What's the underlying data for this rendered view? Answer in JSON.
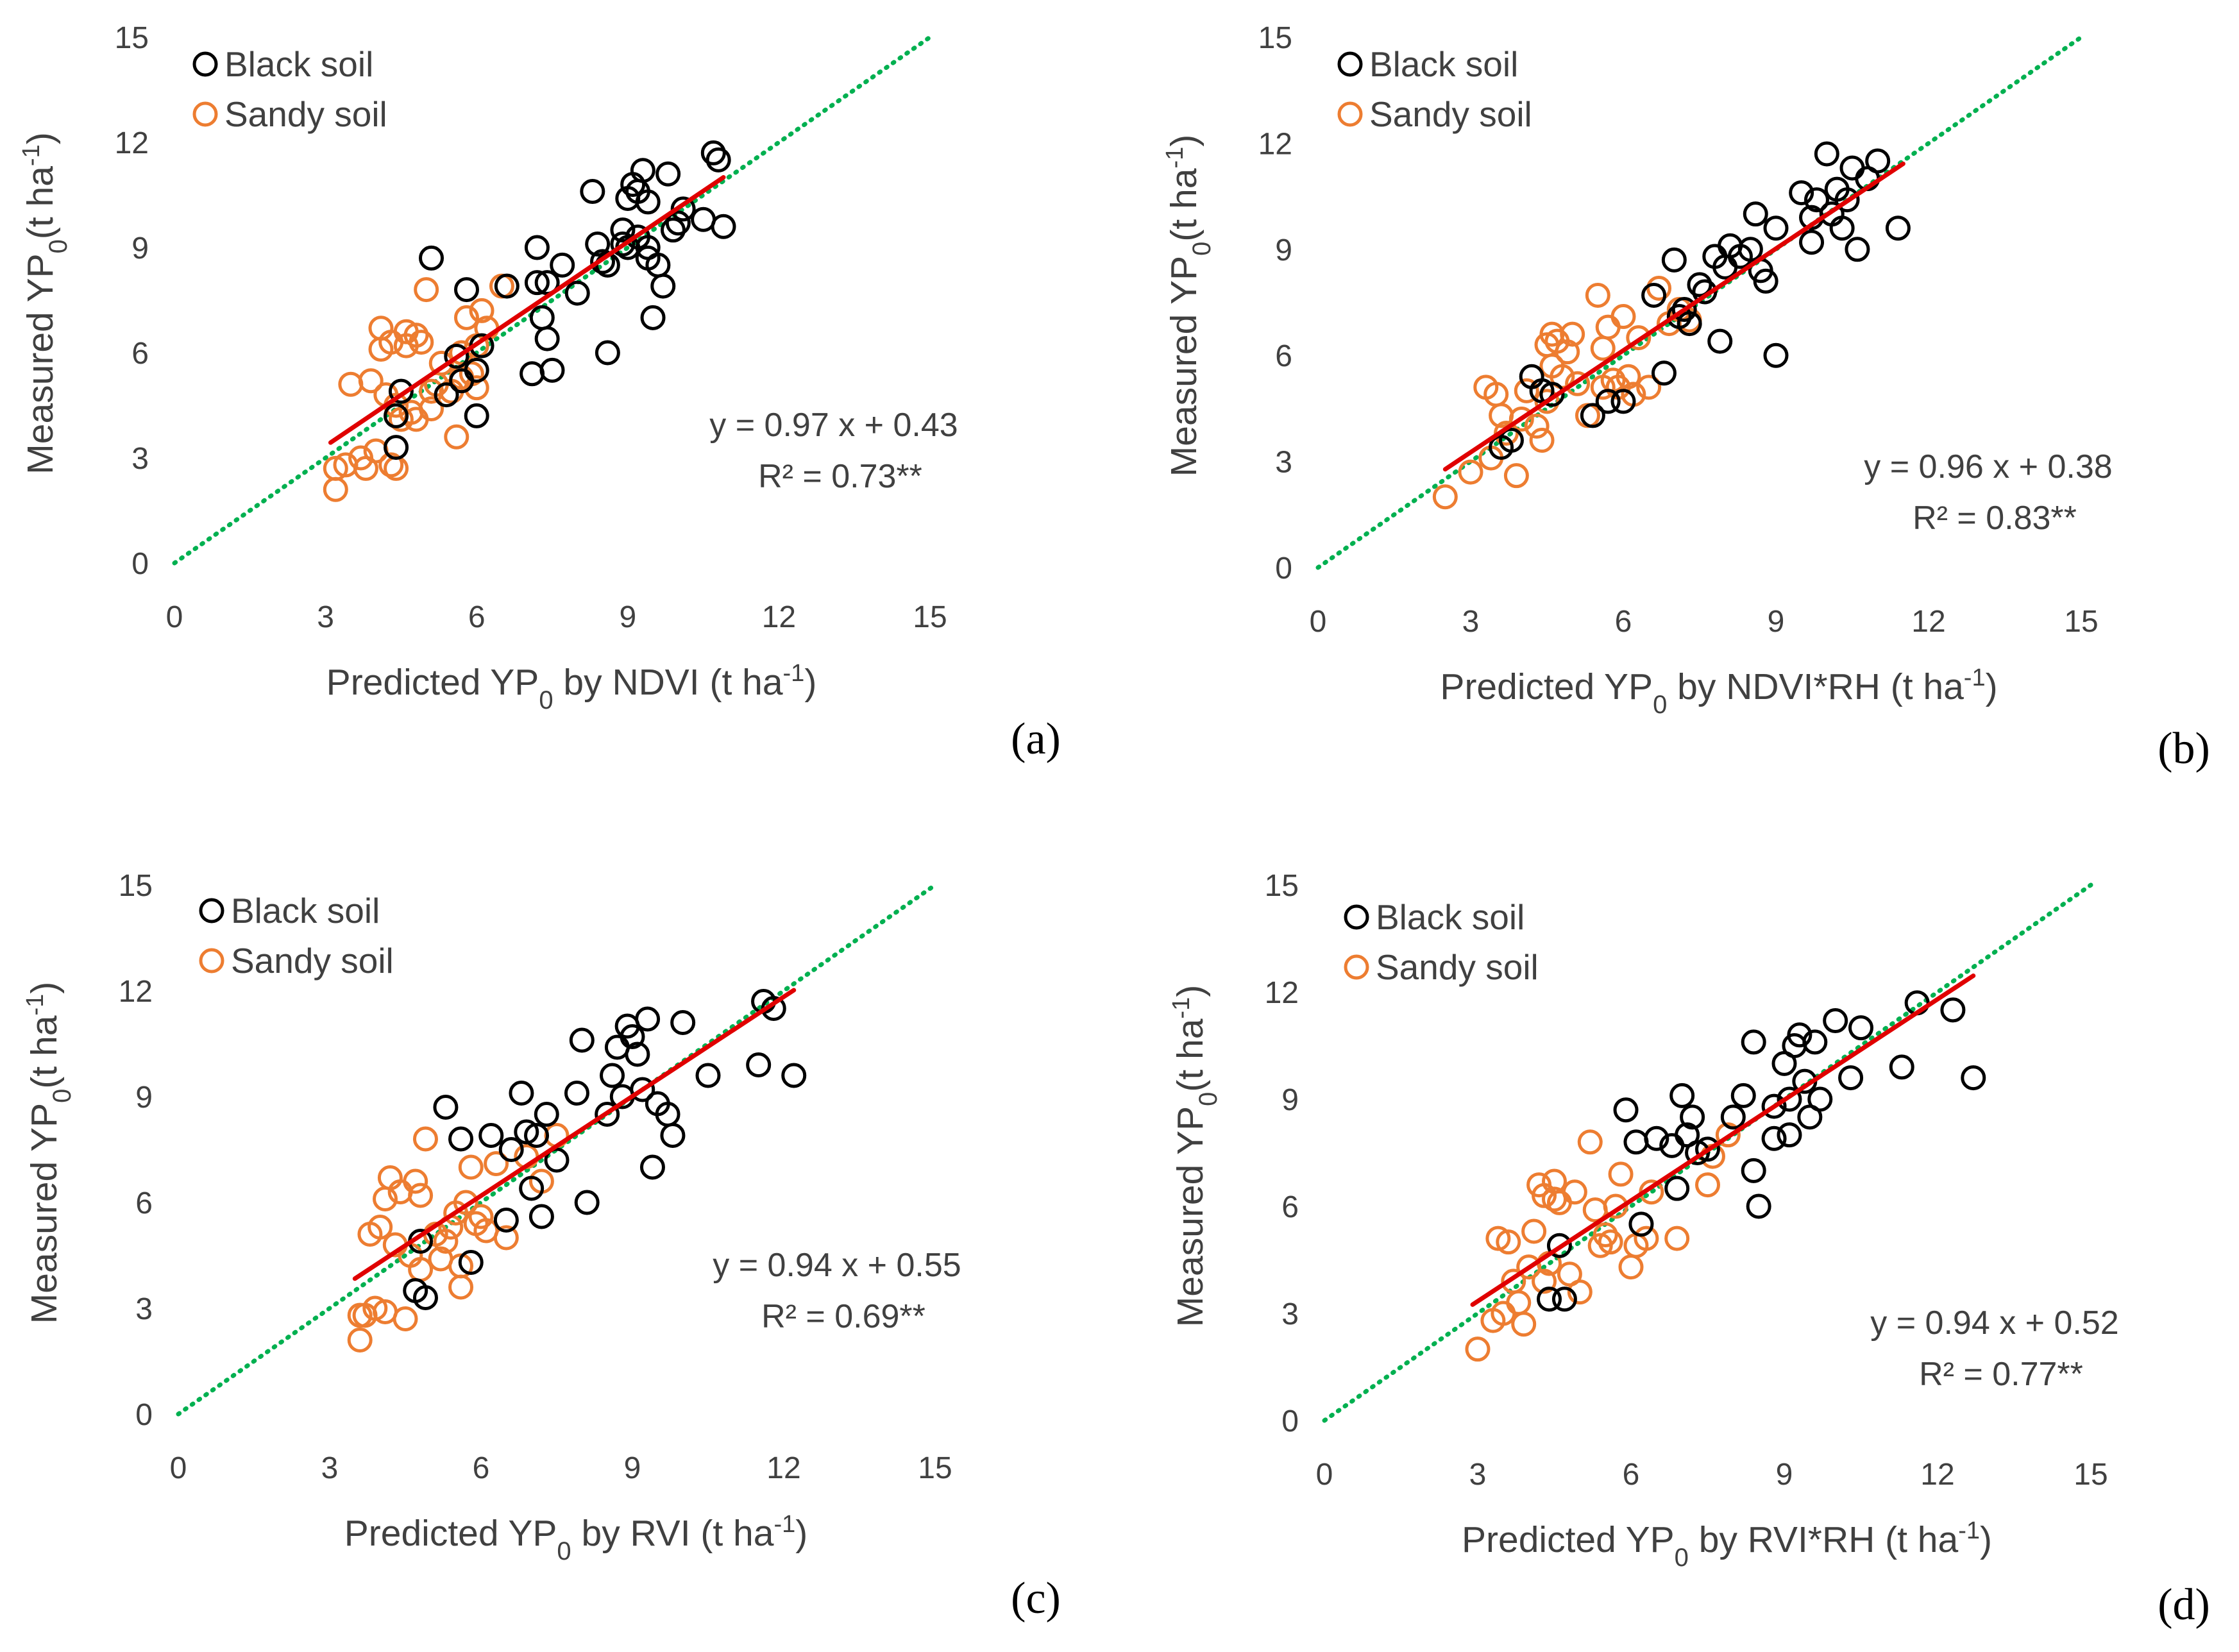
{
  "colors": {
    "black_soil": "#000000",
    "sandy_soil": "#ED7D31",
    "regression": "#E00000",
    "one_to_one": "#00B050",
    "text": "#404040"
  },
  "chart_data": [
    {
      "type": "scatter",
      "panel": "(a)",
      "xlabel": "Predicted YP0 by NDVI (t ha-1)",
      "xlabel_parts": [
        "Predicted YP",
        "0",
        " by NDVI (t ha",
        "-1",
        ")"
      ],
      "ylabel": "Measured YP0 (t ha-1)",
      "ylabel_parts": [
        "Measured YP",
        "0",
        "(t ha",
        "-1",
        ")"
      ],
      "xlim": [
        0,
        15
      ],
      "ylim": [
        0,
        15
      ],
      "xticks": [
        "0",
        "3",
        "6",
        "9",
        "12",
        "15"
      ],
      "yticks": [
        "0",
        "3",
        "6",
        "9",
        "12",
        "15"
      ],
      "legend": [
        "Black soil",
        "Sandy soil"
      ],
      "equation": "y = 0.97 x + 0.43",
      "r2": "R² = 0.73**",
      "fit": {
        "slope": 0.97,
        "intercept": 0.43,
        "x_range": [
          3.1,
          10.9
        ]
      },
      "series": [
        {
          "name": "Black soil",
          "x": [
            5.1,
            5.6,
            5.8,
            4.4,
            4.5,
            4.4,
            5.4,
            5.7,
            6.0,
            7.1,
            7.2,
            7.2,
            7.3,
            7.4,
            7.5,
            7.7,
            8.0,
            8.3,
            8.4,
            8.5,
            8.6,
            8.9,
            8.9,
            9.0,
            9.0,
            9.1,
            9.2,
            9.2,
            9.3,
            9.4,
            9.4,
            9.5,
            9.6,
            9.7,
            9.8,
            9.9,
            10.0,
            10.1,
            10.5,
            10.7,
            10.8,
            10.9,
            8.6,
            9.4,
            7.4,
            6.6,
            6.0,
            6.1
          ],
          "y": [
            8.7,
            5.9,
            7.8,
            4.2,
            4.9,
            3.3,
            4.8,
            5.2,
            4.2,
            5.4,
            9.0,
            8.0,
            7.0,
            6.4,
            5.5,
            8.5,
            7.7,
            10.6,
            9.1,
            8.6,
            6.0,
            9.1,
            9.5,
            10.4,
            9.0,
            10.8,
            9.3,
            10.6,
            11.2,
            9.0,
            8.7,
            7.0,
            8.5,
            7.9,
            11.1,
            9.5,
            9.7,
            10.1,
            9.8,
            11.7,
            11.5,
            9.6,
            8.5,
            10.3,
            8.0,
            7.9,
            5.5,
            6.2
          ]
        },
        {
          "name": "Sandy soil",
          "x": [
            3.2,
            3.4,
            3.5,
            3.7,
            3.8,
            3.9,
            4.0,
            4.1,
            4.1,
            4.2,
            4.3,
            4.3,
            4.4,
            4.4,
            4.5,
            4.6,
            4.6,
            4.7,
            4.8,
            4.8,
            5.0,
            5.1,
            5.2,
            5.3,
            5.5,
            5.6,
            5.7,
            5.8,
            5.9,
            6.0,
            6.1,
            6.2,
            6.5,
            3.2,
            5.7,
            6.0,
            4.9,
            5.1
          ],
          "y": [
            2.1,
            2.8,
            5.1,
            3.0,
            2.7,
            5.2,
            3.2,
            6.1,
            6.7,
            4.8,
            6.3,
            2.8,
            4.5,
            2.7,
            4.1,
            6.6,
            6.2,
            4.3,
            6.5,
            4.1,
            7.8,
            4.4,
            5.1,
            5.7,
            4.9,
            3.6,
            5.3,
            7.0,
            5.4,
            6.2,
            7.2,
            6.7,
            7.9,
            2.7,
            6.0,
            5.0,
            6.3,
            4.9
          ]
        }
      ]
    },
    {
      "type": "scatter",
      "panel": "(b)",
      "xlabel": "Predicted YP0 by NDVI*RH (t ha-1)",
      "xlabel_parts": [
        "Predicted YP",
        "0",
        " by NDVI*RH (t ha",
        "-1",
        ")"
      ],
      "ylabel": "Measured YP0 (t ha-1)",
      "ylabel_parts": [
        "Measured YP",
        "0",
        "(t ha",
        "-1",
        ")"
      ],
      "xlim": [
        0,
        15
      ],
      "ylim": [
        0,
        15
      ],
      "xticks": [
        "0",
        "3",
        "6",
        "9",
        "12",
        "15"
      ],
      "yticks": [
        "0",
        "3",
        "6",
        "9",
        "12",
        "15"
      ],
      "legend": [
        "Black soil",
        "Sandy soil"
      ],
      "equation": "y = 0.96 x + 0.38",
      "r2": "R² = 0.83**",
      "fit": {
        "slope": 0.96,
        "intercept": 0.38,
        "x_range": [
          2.5,
          11.5
        ]
      },
      "series": [
        {
          "name": "Black soil",
          "x": [
            3.6,
            3.8,
            4.2,
            4.4,
            4.6,
            5.4,
            5.7,
            6.0,
            6.6,
            6.8,
            7.0,
            7.1,
            7.2,
            7.3,
            7.5,
            7.6,
            7.8,
            7.9,
            8.0,
            8.1,
            8.3,
            8.5,
            8.6,
            8.8,
            9.0,
            9.0,
            9.5,
            9.7,
            9.8,
            10.0,
            10.1,
            10.2,
            10.3,
            10.4,
            10.5,
            10.6,
            10.8,
            11.0,
            11.4,
            9.7,
            8.7
          ],
          "y": [
            3.4,
            3.6,
            5.4,
            5.0,
            4.9,
            4.3,
            4.7,
            4.7,
            7.7,
            5.5,
            8.7,
            7.1,
            7.3,
            6.9,
            8.0,
            7.8,
            8.8,
            6.4,
            8.5,
            9.1,
            8.8,
            9.0,
            10.0,
            8.1,
            6.0,
            9.6,
            10.6,
            9.2,
            10.4,
            11.7,
            10.0,
            10.7,
            9.6,
            10.4,
            11.3,
            9.0,
            11.0,
            11.5,
            9.6,
            9.9,
            8.4
          ]
        },
        {
          "name": "Sandy soil",
          "x": [
            2.5,
            3.0,
            3.3,
            3.4,
            3.5,
            3.6,
            3.7,
            3.9,
            4.0,
            4.1,
            4.3,
            4.4,
            4.5,
            4.5,
            4.6,
            4.7,
            4.8,
            4.9,
            5.0,
            5.1,
            5.3,
            5.5,
            5.6,
            5.7,
            5.8,
            5.9,
            6.0,
            6.1,
            6.2,
            6.3,
            6.5,
            6.7,
            6.9,
            7.1,
            7.3,
            5.6,
            4.6
          ],
          "y": [
            2.0,
            2.7,
            5.1,
            3.1,
            4.9,
            4.3,
            3.8,
            2.6,
            4.2,
            5.0,
            4.0,
            3.6,
            6.3,
            4.7,
            6.6,
            6.4,
            5.4,
            6.1,
            6.6,
            5.2,
            4.3,
            7.7,
            5.1,
            6.8,
            5.3,
            5.1,
            7.1,
            5.4,
            4.9,
            6.5,
            5.1,
            7.9,
            6.9,
            7.3,
            7.0,
            6.2,
            5.7
          ]
        }
      ]
    },
    {
      "type": "scatter",
      "panel": "(c)",
      "xlabel": "Predicted YP0 by RVI (t ha-1)",
      "xlabel_parts": [
        "Predicted YP",
        "0",
        " by RVI (t ha",
        "-1",
        ")"
      ],
      "ylabel": "Measured YP0 (t ha-1)",
      "ylabel_parts": [
        "Measured YP",
        "0",
        "(t ha",
        "-1",
        ")"
      ],
      "xlim": [
        0,
        15
      ],
      "ylim": [
        0,
        15
      ],
      "xticks": [
        "0",
        "3",
        "6",
        "9",
        "12",
        "15"
      ],
      "yticks": [
        "0",
        "3",
        "6",
        "9",
        "12",
        "15"
      ],
      "legend": [
        "Black soil",
        "Sandy soil"
      ],
      "equation": "y = 0.94 x + 0.55",
      "r2": "R² = 0.69**",
      "fit": {
        "slope": 0.94,
        "intercept": 0.55,
        "x_range": [
          3.5,
          12.2
        ]
      },
      "series": [
        {
          "name": "Black soil",
          "x": [
            4.7,
            4.8,
            4.9,
            5.3,
            5.6,
            5.8,
            6.2,
            6.5,
            6.8,
            6.9,
            7.0,
            7.1,
            7.2,
            7.3,
            7.5,
            7.9,
            8.0,
            8.1,
            8.5,
            8.6,
            8.7,
            8.8,
            8.9,
            9.0,
            9.1,
            9.2,
            9.3,
            9.4,
            9.5,
            9.7,
            9.8,
            10.0,
            10.5,
            11.5,
            11.6,
            11.8,
            12.2,
            6.6
          ],
          "y": [
            3.5,
            4.9,
            3.3,
            8.7,
            7.8,
            4.3,
            7.9,
            5.5,
            9.1,
            8.0,
            6.4,
            7.9,
            5.6,
            8.5,
            7.2,
            9.1,
            10.6,
            6.0,
            8.5,
            9.6,
            10.4,
            9.0,
            11.0,
            10.7,
            10.2,
            9.2,
            11.2,
            7.0,
            8.8,
            8.5,
            7.9,
            11.1,
            9.6,
            9.9,
            11.7,
            11.5,
            9.6,
            7.5
          ]
        },
        {
          "name": "Sandy soil",
          "x": [
            3.6,
            3.7,
            3.8,
            3.9,
            4.0,
            4.1,
            4.1,
            4.2,
            4.3,
            4.4,
            4.5,
            4.6,
            4.7,
            4.8,
            4.8,
            4.9,
            5.1,
            5.2,
            5.3,
            5.4,
            5.5,
            5.6,
            5.7,
            5.8,
            5.9,
            6.0,
            6.1,
            6.3,
            6.5,
            6.9,
            7.2,
            7.5,
            3.6,
            5.6
          ],
          "y": [
            2.1,
            2.8,
            5.1,
            3.0,
            5.3,
            6.1,
            2.9,
            6.7,
            4.8,
            6.3,
            2.7,
            4.5,
            6.6,
            4.1,
            6.2,
            7.8,
            5.1,
            4.4,
            4.9,
            5.3,
            5.7,
            3.6,
            6.0,
            7.0,
            5.4,
            5.6,
            5.2,
            7.1,
            5.0,
            7.3,
            6.6,
            7.9,
            2.8,
            4.2
          ]
        }
      ]
    },
    {
      "type": "scatter",
      "panel": "(d)",
      "xlabel": "Predicted YP0 by RVI*RH (t ha-1)",
      "xlabel_parts": [
        "Predicted YP",
        "0",
        " by RVI*RH (t ha",
        "-1",
        ")"
      ],
      "ylabel": "Measured YP0 (t ha-1)",
      "ylabel_parts": [
        "Measured YP",
        "0",
        "(t ha",
        "-1",
        ")"
      ],
      "xlim": [
        0,
        15
      ],
      "ylim": [
        0,
        15
      ],
      "xticks": [
        "0",
        "3",
        "6",
        "9",
        "12",
        "15"
      ],
      "yticks": [
        "0",
        "3",
        "6",
        "9",
        "12",
        "15"
      ],
      "legend": [
        "Black soil",
        "Sandy soil"
      ],
      "equation": "y = 0.94 x + 0.52",
      "r2": "R² = 0.77**",
      "fit": {
        "slope": 0.94,
        "intercept": 0.52,
        "x_range": [
          2.9,
          12.7
        ]
      },
      "series": [
        {
          "name": "Black soil",
          "x": [
            4.4,
            4.6,
            4.7,
            5.9,
            6.1,
            6.2,
            6.5,
            6.8,
            6.9,
            7.0,
            7.1,
            7.2,
            7.3,
            7.5,
            8.0,
            8.2,
            8.4,
            8.4,
            8.5,
            8.8,
            9.0,
            9.1,
            9.2,
            9.3,
            9.4,
            9.5,
            9.6,
            9.7,
            10.0,
            10.3,
            10.5,
            11.3,
            11.6,
            12.3,
            12.7,
            8.8,
            9.1
          ],
          "y": [
            3.4,
            4.9,
            3.4,
            8.7,
            7.8,
            5.5,
            7.9,
            7.7,
            6.5,
            9.1,
            8.0,
            8.5,
            7.5,
            7.6,
            8.5,
            9.1,
            10.6,
            7.0,
            6.0,
            8.8,
            10.0,
            9.0,
            10.5,
            10.8,
            9.5,
            8.5,
            10.6,
            9.0,
            11.2,
            9.6,
            11.0,
            9.9,
            11.7,
            11.5,
            9.6,
            7.9,
            8.0
          ]
        },
        {
          "name": "Sandy soil",
          "x": [
            3.0,
            3.3,
            3.4,
            3.5,
            3.6,
            3.7,
            3.8,
            3.9,
            4.0,
            4.1,
            4.2,
            4.3,
            4.3,
            4.4,
            4.5,
            4.6,
            4.8,
            4.9,
            5.0,
            5.2,
            5.4,
            5.5,
            5.6,
            5.7,
            5.8,
            6.0,
            6.1,
            6.3,
            6.4,
            6.9,
            7.5,
            7.6,
            7.9,
            5.3,
            4.5
          ],
          "y": [
            2.0,
            2.8,
            5.1,
            3.0,
            5.0,
            3.9,
            3.3,
            2.7,
            4.3,
            5.3,
            6.6,
            6.3,
            3.9,
            4.4,
            6.7,
            6.1,
            4.1,
            6.4,
            3.6,
            7.8,
            4.9,
            5.2,
            5.0,
            6.0,
            6.9,
            4.3,
            4.9,
            5.1,
            6.4,
            5.1,
            6.6,
            7.4,
            8.0,
            5.9,
            6.2
          ]
        }
      ]
    }
  ]
}
